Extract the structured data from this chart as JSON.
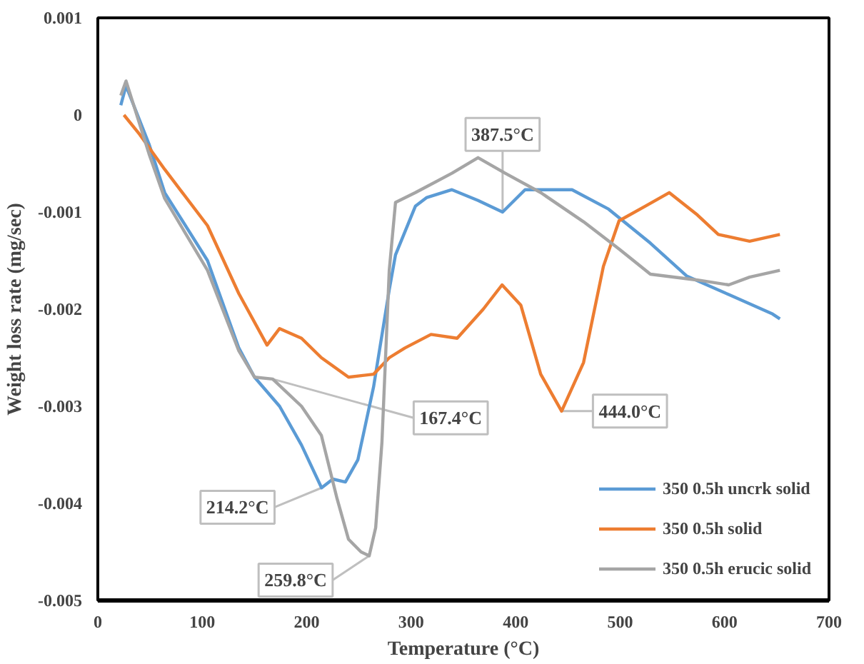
{
  "chart_data": {
    "type": "line",
    "xlabel": "Temperature (°C)",
    "ylabel": "Weight loss rate (mg/sec)",
    "xlim": [
      0,
      700
    ],
    "xticks": [
      0,
      100,
      200,
      300,
      400,
      500,
      600,
      700
    ],
    "ylim": [
      -0.005,
      0.001
    ],
    "yticks": [
      0.001,
      0,
      -0.001,
      -0.002,
      -0.003,
      -0.004,
      -0.005
    ],
    "grid": false,
    "legend": "bottom right",
    "line_style": "solid",
    "marker": "none",
    "series": [
      {
        "name": "350 0.5h uncrk solid",
        "color": "#5b9bd5",
        "x": [
          22,
          27,
          49,
          64,
          105,
          135,
          150,
          174,
          195,
          214.2,
          225,
          237,
          249,
          264,
          279,
          285,
          304,
          315,
          339,
          364,
          387.5,
          409,
          454,
          489,
          529,
          564,
          604,
          646,
          653
        ],
        "values": [
          0.0001,
          0.0003,
          -0.0003,
          -0.0008,
          -0.0015,
          -0.0024,
          -0.0027,
          -0.003,
          -0.0034,
          -0.00384,
          -0.00375,
          -0.00378,
          -0.00355,
          -0.0028,
          -0.0018,
          -0.00144,
          -0.00094,
          -0.00085,
          -0.00077,
          -0.00088,
          -0.001,
          -0.00077,
          -0.00077,
          -0.00097,
          -0.00132,
          -0.00166,
          -0.00185,
          -0.00205,
          -0.0021
        ]
      },
      {
        "name": "350 0.5h solid",
        "color": "#ed7d31",
        "x": [
          25,
          40,
          64,
          105,
          135,
          162,
          174,
          195,
          214,
          240,
          264,
          279,
          294,
          319,
          344,
          369,
          387,
          405,
          424,
          444,
          465,
          484,
          499,
          524,
          547,
          574,
          594,
          624,
          653
        ],
        "values": [
          0,
          -0.0002,
          -0.00056,
          -0.00114,
          -0.00184,
          -0.00237,
          -0.0022,
          -0.0023,
          -0.0025,
          -0.0027,
          -0.00267,
          -0.0025,
          -0.0024,
          -0.00226,
          -0.0023,
          -0.002,
          -0.00175,
          -0.00196,
          -0.00267,
          -0.00305,
          -0.00255,
          -0.00156,
          -0.00109,
          -0.00094,
          -0.0008,
          -0.00103,
          -0.00123,
          -0.0013,
          -0.00123
        ]
      },
      {
        "name": "350 0.5h erucic solid",
        "color": "#a5a5a5",
        "x": [
          22,
          27,
          49,
          64,
          105,
          135,
          150,
          167.4,
          195,
          214,
          229,
          240,
          252,
          259.8,
          266,
          272,
          279,
          285,
          304,
          339,
          364,
          390,
          424,
          465,
          499,
          529,
          574,
          604,
          624,
          653
        ],
        "values": [
          0.0002,
          0.00035,
          -0.0004,
          -0.00086,
          -0.0016,
          -0.00243,
          -0.0027,
          -0.00272,
          -0.003,
          -0.0033,
          -0.00395,
          -0.00437,
          -0.0045,
          -0.00454,
          -0.00425,
          -0.00337,
          -0.0016,
          -0.0009,
          -0.0008,
          -0.0006,
          -0.00044,
          -0.0006,
          -0.0008,
          -0.0011,
          -0.00138,
          -0.00164,
          -0.0017,
          -0.00175,
          -0.00167,
          -0.0016
        ]
      }
    ],
    "annotations": [
      {
        "text": "167.4°C",
        "x": 167.4,
        "y": -0.00272
      },
      {
        "text": "214.2°C",
        "x": 214.2,
        "y": -0.00384
      },
      {
        "text": "259.8°C",
        "x": 259.8,
        "y": -0.00454
      },
      {
        "text": "387.5°C",
        "x": 387.5,
        "y": -0.001
      },
      {
        "text": "444.0°C",
        "x": 444,
        "y": -0.00305
      }
    ]
  }
}
